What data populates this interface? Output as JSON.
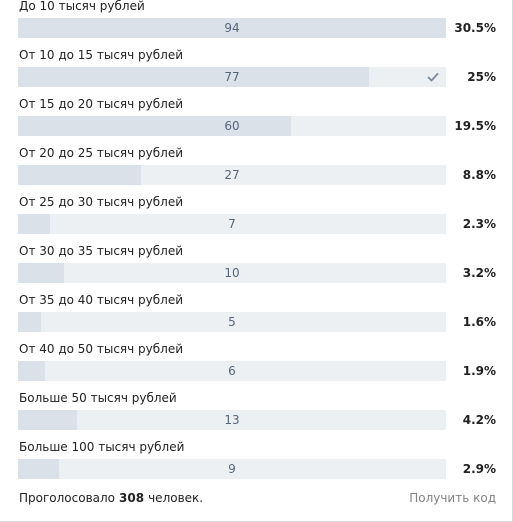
{
  "poll": {
    "options": [
      {
        "label": "До 10 тысяч рублей",
        "count": 94,
        "percent": "30.5%",
        "selected": false
      },
      {
        "label": "От 10 до 15 тысяч рублей",
        "count": 77,
        "percent": "25%",
        "selected": true
      },
      {
        "label": "От 15 до 20 тысяч рублей",
        "count": 60,
        "percent": "19.5%",
        "selected": false
      },
      {
        "label": "От 20 до 25 тысяч рублей",
        "count": 27,
        "percent": "8.8%",
        "selected": false
      },
      {
        "label": "От 25 до 30 тысяч рублей",
        "count": 7,
        "percent": "2.3%",
        "selected": false
      },
      {
        "label": "От 30 до 35 тысяч рублей",
        "count": 10,
        "percent": "3.2%",
        "selected": false
      },
      {
        "label": "От 35 до 40 тысяч рублей",
        "count": 5,
        "percent": "1.6%",
        "selected": false
      },
      {
        "label": "От 40 до 50 тысяч рублей",
        "count": 6,
        "percent": "1.9%",
        "selected": false
      },
      {
        "label": "Больше 50 тысяч рублей",
        "count": 13,
        "percent": "4.2%",
        "selected": false
      },
      {
        "label": "Больше 100 тысяч рублей",
        "count": 9,
        "percent": "2.9%",
        "selected": false
      }
    ],
    "footer": {
      "prefix": "Проголосовало",
      "total": 308,
      "suffix": "человек.",
      "action": "Получить код"
    }
  }
}
